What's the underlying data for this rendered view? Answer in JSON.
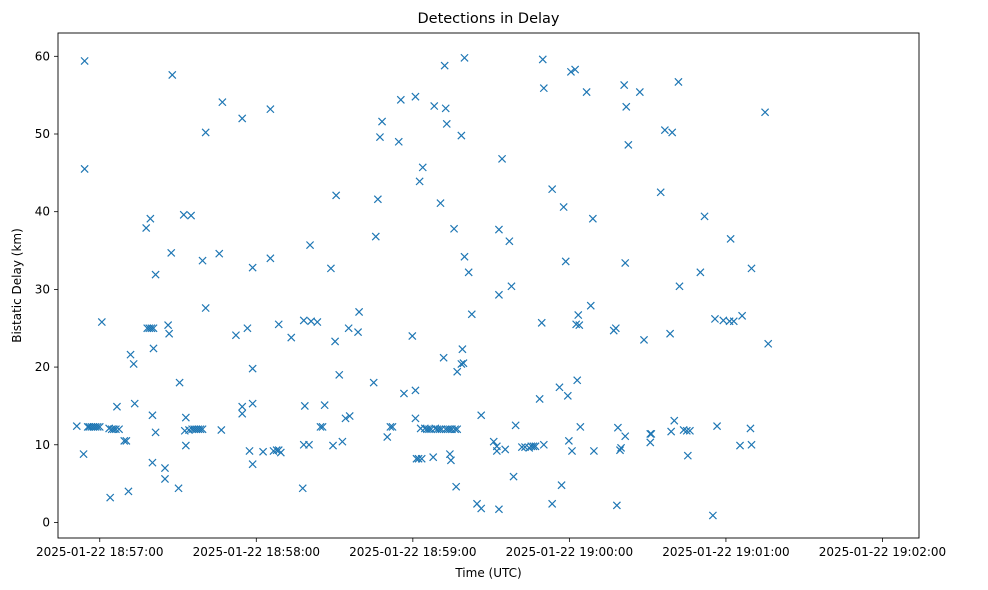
{
  "chart_data": {
    "type": "scatter",
    "title": "Detections in Delay",
    "xlabel": "Time (UTC)",
    "ylabel": "Bistatic Delay (km)",
    "marker": "x",
    "color": "#1f77b4",
    "x_unit": "seconds since 2025-01-22 18:57:00 UTC",
    "xlim": [
      -16,
      314
    ],
    "ylim": [
      -2,
      63
    ],
    "x_ticks": [
      {
        "value": 0,
        "label": "2025-01-22 18:57:00"
      },
      {
        "value": 60,
        "label": "2025-01-22 18:58:00"
      },
      {
        "value": 120,
        "label": "2025-01-22 18:59:00"
      },
      {
        "value": 180,
        "label": "2025-01-22 19:00:00"
      },
      {
        "value": 240,
        "label": "2025-01-22 19:01:00"
      },
      {
        "value": 300,
        "label": "2025-01-22 19:02:00"
      }
    ],
    "y_ticks": [
      {
        "value": 0,
        "label": "0"
      },
      {
        "value": 10,
        "label": "10"
      },
      {
        "value": 20,
        "label": "20"
      },
      {
        "value": 30,
        "label": "30"
      },
      {
        "value": 40,
        "label": "40"
      },
      {
        "value": 50,
        "label": "50"
      },
      {
        "value": 60,
        "label": "60"
      }
    ],
    "points": [
      [
        -8.8,
        12.4
      ],
      [
        -6.2,
        8.8
      ],
      [
        -5.8,
        59.4
      ],
      [
        -5.8,
        45.5
      ],
      [
        -4.6,
        12.3
      ],
      [
        -4.0,
        12.3
      ],
      [
        -3.2,
        12.3
      ],
      [
        -2.4,
        12.3
      ],
      [
        -1.6,
        12.3
      ],
      [
        -0.8,
        12.3
      ],
      [
        0.0,
        12.3
      ],
      [
        0.8,
        25.8
      ],
      [
        3.6,
        12.1
      ],
      [
        4.0,
        3.2
      ],
      [
        4.6,
        12.0
      ],
      [
        5.4,
        12.0
      ],
      [
        6.2,
        12.0
      ],
      [
        6.6,
        14.9
      ],
      [
        7.4,
        12.0
      ],
      [
        9.4,
        10.5
      ],
      [
        10.2,
        10.5
      ],
      [
        11.0,
        4.0
      ],
      [
        11.8,
        21.6
      ],
      [
        13.0,
        20.4
      ],
      [
        13.4,
        15.3
      ],
      [
        17.8,
        37.9
      ],
      [
        18.2,
        25.0
      ],
      [
        19.0,
        25.0
      ],
      [
        19.4,
        39.1
      ],
      [
        19.8,
        25.0
      ],
      [
        20.2,
        7.7
      ],
      [
        20.2,
        13.8
      ],
      [
        20.6,
        25.0
      ],
      [
        20.6,
        22.4
      ],
      [
        21.4,
        31.9
      ],
      [
        21.4,
        11.6
      ],
      [
        25.0,
        5.6
      ],
      [
        25.0,
        7.0
      ],
      [
        26.2,
        25.4
      ],
      [
        26.6,
        24.3
      ],
      [
        27.4,
        34.7
      ],
      [
        27.8,
        57.6
      ],
      [
        30.2,
        4.4
      ],
      [
        30.6,
        18.0
      ],
      [
        32.2,
        39.6
      ],
      [
        32.6,
        11.8
      ],
      [
        33.0,
        13.5
      ],
      [
        33.0,
        9.9
      ],
      [
        34.2,
        11.9
      ],
      [
        35.0,
        39.5
      ],
      [
        35.4,
        12.0
      ],
      [
        36.2,
        12.0
      ],
      [
        37.0,
        12.0
      ],
      [
        37.8,
        12.0
      ],
      [
        38.6,
        12.0
      ],
      [
        39.4,
        12.0
      ],
      [
        39.4,
        33.7
      ],
      [
        40.6,
        27.6
      ],
      [
        40.6,
        50.2
      ],
      [
        45.8,
        34.6
      ],
      [
        46.6,
        11.9
      ],
      [
        47.0,
        54.1
      ],
      [
        52.2,
        24.1
      ],
      [
        54.6,
        52.0
      ],
      [
        54.6,
        14.9
      ],
      [
        54.6,
        14.0
      ],
      [
        56.6,
        25.0
      ],
      [
        57.4,
        9.2
      ],
      [
        58.6,
        7.5
      ],
      [
        58.6,
        15.3
      ],
      [
        58.6,
        19.8
      ],
      [
        58.6,
        32.8
      ],
      [
        62.6,
        9.1
      ],
      [
        65.4,
        53.2
      ],
      [
        65.4,
        34.0
      ],
      [
        66.6,
        9.2
      ],
      [
        67.8,
        9.3
      ],
      [
        68.6,
        25.5
      ],
      [
        68.6,
        9.3
      ],
      [
        69.4,
        9.0
      ],
      [
        73.4,
        23.8
      ],
      [
        77.8,
        4.4
      ],
      [
        78.2,
        10.0
      ],
      [
        78.2,
        26.0
      ],
      [
        78.6,
        15.0
      ],
      [
        80.2,
        10.0
      ],
      [
        80.6,
        35.7
      ],
      [
        81.0,
        25.9
      ],
      [
        83.4,
        25.8
      ],
      [
        84.6,
        12.3
      ],
      [
        85.4,
        12.3
      ],
      [
        86.2,
        15.1
      ],
      [
        88.6,
        32.7
      ],
      [
        89.4,
        9.9
      ],
      [
        90.2,
        23.3
      ],
      [
        90.6,
        42.1
      ],
      [
        91.8,
        19.0
      ],
      [
        93.0,
        10.4
      ],
      [
        94.2,
        13.4
      ],
      [
        95.4,
        25.0
      ],
      [
        95.8,
        13.7
      ],
      [
        99.0,
        24.5
      ],
      [
        99.4,
        27.1
      ],
      [
        105.0,
        18.0
      ],
      [
        105.8,
        36.8
      ],
      [
        106.6,
        41.6
      ],
      [
        107.4,
        49.6
      ],
      [
        108.2,
        51.6
      ],
      [
        110.2,
        11.0
      ],
      [
        111.4,
        12.3
      ],
      [
        112.2,
        12.3
      ],
      [
        114.6,
        49.0
      ],
      [
        115.4,
        54.4
      ],
      [
        116.6,
        16.6
      ],
      [
        119.8,
        24.0
      ],
      [
        121.0,
        54.8
      ],
      [
        121.0,
        13.4
      ],
      [
        121.0,
        17.0
      ],
      [
        121.4,
        8.2
      ],
      [
        122.2,
        8.2
      ],
      [
        122.6,
        43.9
      ],
      [
        123.0,
        12.1
      ],
      [
        123.4,
        8.2
      ],
      [
        123.8,
        45.7
      ],
      [
        124.6,
        12.1
      ],
      [
        125.4,
        12.0
      ],
      [
        126.2,
        12.0
      ],
      [
        127.0,
        12.0
      ],
      [
        127.8,
        8.4
      ],
      [
        128.2,
        53.6
      ],
      [
        128.6,
        12.1
      ],
      [
        129.4,
        12.0
      ],
      [
        130.2,
        12.0
      ],
      [
        130.6,
        41.1
      ],
      [
        131.0,
        12.0
      ],
      [
        131.8,
        21.2
      ],
      [
        132.2,
        58.8
      ],
      [
        132.6,
        12.0
      ],
      [
        132.6,
        53.3
      ],
      [
        133.0,
        51.3
      ],
      [
        133.4,
        12.0
      ],
      [
        134.2,
        8.8
      ],
      [
        134.2,
        12.0
      ],
      [
        134.6,
        8.0
      ],
      [
        135.0,
        12.0
      ],
      [
        135.8,
        37.8
      ],
      [
        136.2,
        12.0
      ],
      [
        136.6,
        4.6
      ],
      [
        137.0,
        19.4
      ],
      [
        137.0,
        12.0
      ],
      [
        138.6,
        20.4
      ],
      [
        138.6,
        49.8
      ],
      [
        139.0,
        22.3
      ],
      [
        139.4,
        20.5
      ],
      [
        139.8,
        34.2
      ],
      [
        139.8,
        59.8
      ],
      [
        141.4,
        32.2
      ],
      [
        142.6,
        26.8
      ],
      [
        144.6,
        2.4
      ],
      [
        146.2,
        1.8
      ],
      [
        146.2,
        13.8
      ],
      [
        151.0,
        10.4
      ],
      [
        152.2,
        9.8
      ],
      [
        152.2,
        9.2
      ],
      [
        153.0,
        1.7
      ],
      [
        153.0,
        37.7
      ],
      [
        153.0,
        29.3
      ],
      [
        154.2,
        46.8
      ],
      [
        155.4,
        9.4
      ],
      [
        157.0,
        36.2
      ],
      [
        157.8,
        30.4
      ],
      [
        158.6,
        5.9
      ],
      [
        159.4,
        12.5
      ],
      [
        161.8,
        9.7
      ],
      [
        163.0,
        9.7
      ],
      [
        164.6,
        9.6
      ],
      [
        165.4,
        9.8
      ],
      [
        166.2,
        9.8
      ],
      [
        167.0,
        9.8
      ],
      [
        168.6,
        15.9
      ],
      [
        169.4,
        25.7
      ],
      [
        169.8,
        59.6
      ],
      [
        170.2,
        55.9
      ],
      [
        170.2,
        10.0
      ],
      [
        173.4,
        42.9
      ],
      [
        173.4,
        2.4
      ],
      [
        176.2,
        17.4
      ],
      [
        177.0,
        4.8
      ],
      [
        177.8,
        40.6
      ],
      [
        178.6,
        33.6
      ],
      [
        179.4,
        16.3
      ],
      [
        179.8,
        10.5
      ],
      [
        180.6,
        58.0
      ],
      [
        181.0,
        9.2
      ],
      [
        182.2,
        58.3
      ],
      [
        182.6,
        25.5
      ],
      [
        183.0,
        18.3
      ],
      [
        183.4,
        26.7
      ],
      [
        183.8,
        25.4
      ],
      [
        184.2,
        12.3
      ],
      [
        186.6,
        55.4
      ],
      [
        188.2,
        27.9
      ],
      [
        189.0,
        39.1
      ],
      [
        189.4,
        9.2
      ],
      [
        197.0,
        24.7
      ],
      [
        197.8,
        25.0
      ],
      [
        198.2,
        2.2
      ],
      [
        198.6,
        12.2
      ],
      [
        199.4,
        9.3
      ],
      [
        199.8,
        9.6
      ],
      [
        201.0,
        56.3
      ],
      [
        201.4,
        11.1
      ],
      [
        201.4,
        33.4
      ],
      [
        201.8,
        53.5
      ],
      [
        202.6,
        48.6
      ],
      [
        207.0,
        55.4
      ],
      [
        208.6,
        23.5
      ],
      [
        211.0,
        11.4
      ],
      [
        211.0,
        10.3
      ],
      [
        211.4,
        11.4
      ],
      [
        215.0,
        42.5
      ],
      [
        216.6,
        50.5
      ],
      [
        218.6,
        24.3
      ],
      [
        219.0,
        11.7
      ],
      [
        219.4,
        50.2
      ],
      [
        220.2,
        13.1
      ],
      [
        221.8,
        56.7
      ],
      [
        222.2,
        30.4
      ],
      [
        223.8,
        11.9
      ],
      [
        225.0,
        11.8
      ],
      [
        225.4,
        8.6
      ],
      [
        226.2,
        11.8
      ],
      [
        230.2,
        32.2
      ],
      [
        231.8,
        39.4
      ],
      [
        235.0,
        0.9
      ],
      [
        235.8,
        26.2
      ],
      [
        236.6,
        12.4
      ],
      [
        239.0,
        26.0
      ],
      [
        241.4,
        25.9
      ],
      [
        241.8,
        36.5
      ],
      [
        243.0,
        25.9
      ],
      [
        245.4,
        9.9
      ],
      [
        246.2,
        26.6
      ],
      [
        249.4,
        12.1
      ],
      [
        249.8,
        10.0
      ],
      [
        249.8,
        32.7
      ],
      [
        255.0,
        52.8
      ],
      [
        256.2,
        23.0
      ]
    ]
  }
}
